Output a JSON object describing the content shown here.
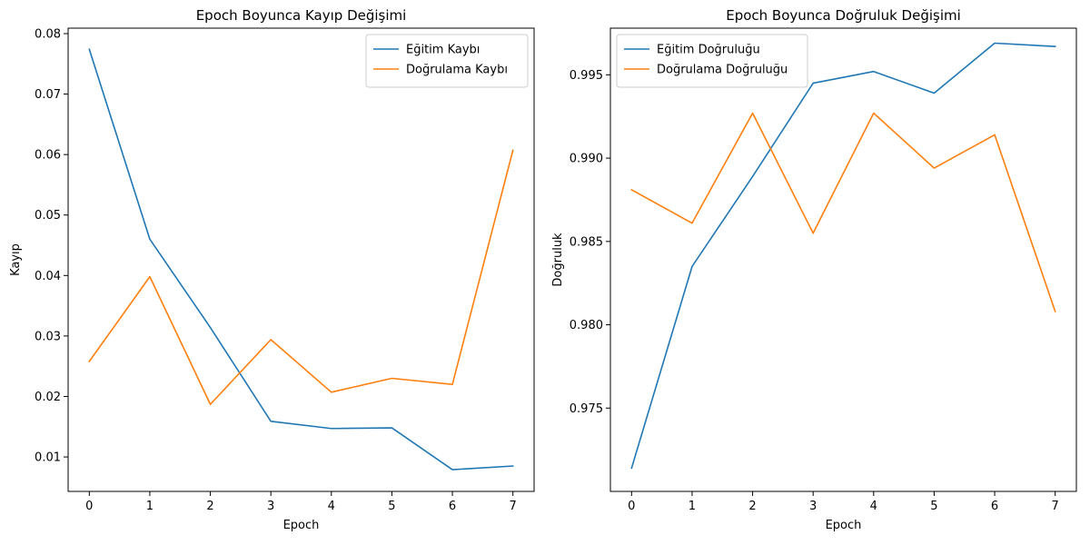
{
  "chart_data": [
    {
      "type": "line",
      "title": "Epoch Boyunca Kayıp Değişimi",
      "xlabel": "Epoch",
      "ylabel": "Kayıp",
      "x": [
        0,
        1,
        2,
        3,
        4,
        5,
        6,
        7
      ],
      "xlim": [
        -0.35,
        7.35
      ],
      "ylim": [
        0.0043,
        0.0809
      ],
      "xticks": [
        0,
        1,
        2,
        3,
        4,
        5,
        6,
        7
      ],
      "yticks": [
        0.01,
        0.02,
        0.03,
        0.04,
        0.05,
        0.06,
        0.07,
        0.08
      ],
      "ytick_labels": [
        "0.01",
        "0.02",
        "0.03",
        "0.04",
        "0.05",
        "0.06",
        "0.07",
        "0.08"
      ],
      "legend_position": "upper right",
      "grid": false,
      "series": [
        {
          "name": "Eğitim Kaybı",
          "color": "#1f77b4",
          "values": [
            0.0774,
            0.046,
            0.0314,
            0.0159,
            0.0147,
            0.0148,
            0.0079,
            0.0085
          ]
        },
        {
          "name": "Doğrulama Kaybı",
          "color": "#ff7f0e",
          "values": [
            0.0258,
            0.0398,
            0.0187,
            0.0294,
            0.0207,
            0.023,
            0.022,
            0.0607
          ]
        }
      ]
    },
    {
      "type": "line",
      "title": "Epoch Boyunca Doğruluk Değişimi",
      "xlabel": "Epoch",
      "ylabel": "Doğruluk",
      "x": [
        0,
        1,
        2,
        3,
        4,
        5,
        6,
        7
      ],
      "xlim": [
        -0.35,
        7.35
      ],
      "ylim": [
        0.97,
        0.9978
      ],
      "xticks": [
        0,
        1,
        2,
        3,
        4,
        5,
        6,
        7
      ],
      "yticks": [
        0.975,
        0.98,
        0.985,
        0.99,
        0.995
      ],
      "ytick_labels": [
        "0.975",
        "0.980",
        "0.985",
        "0.990",
        "0.995"
      ],
      "legend_position": "upper left",
      "grid": false,
      "series": [
        {
          "name": "Eğitim Doğruluğu",
          "color": "#1f77b4",
          "values": [
            0.9714,
            0.9835,
            0.9889,
            0.9945,
            0.9952,
            0.9939,
            0.9969,
            0.9967
          ]
        },
        {
          "name": "Doğrulama Doğruluğu",
          "color": "#ff7f0e",
          "values": [
            0.9881,
            0.9861,
            0.9927,
            0.9855,
            0.9927,
            0.9894,
            0.9914,
            0.9808
          ]
        }
      ]
    }
  ]
}
